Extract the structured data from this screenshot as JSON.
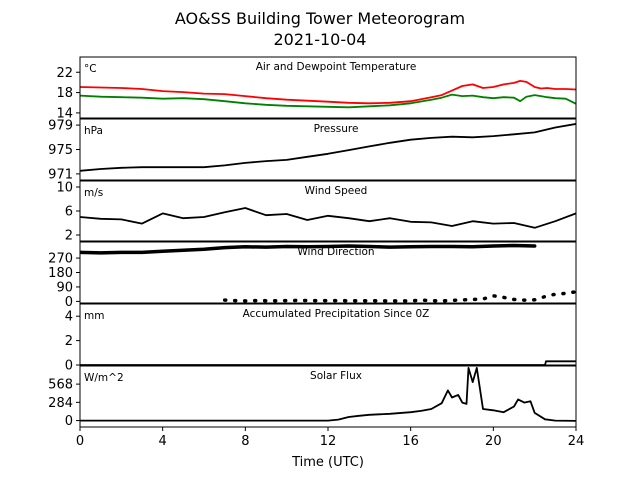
{
  "title_line1": "AO&SS Building Tower Meteorogram",
  "title_line2": "2021-10-04",
  "xlabel": "Time (UTC)",
  "xticks": [
    0,
    4,
    8,
    12,
    16,
    20,
    24
  ],
  "chart_data": {
    "type": "line",
    "title": "AO&SS Building Tower Meteorogram 2021-10-04",
    "xlabel": "Time (UTC)",
    "xlim": [
      0,
      24
    ],
    "panels": [
      {
        "id": "temp",
        "title": "Air and Dewpoint Temperature",
        "unit": "°C",
        "ylim": [
          13,
          25
        ],
        "yticks": [
          14,
          18,
          22
        ],
        "series": [
          {
            "color": "#ff0000",
            "x": [
              0,
              1,
              2,
              3,
              4,
              5,
              6,
              7,
              8,
              9,
              10,
              11,
              12,
              13,
              14,
              15,
              16,
              17,
              17.5,
              18,
              18.5,
              19,
              19.5,
              20,
              20.5,
              21,
              21.3,
              21.6,
              22,
              22.3,
              22.6,
              23,
              23.5,
              24
            ],
            "y": [
              19.1,
              19.0,
              18.9,
              18.7,
              18.3,
              18.1,
              17.8,
              17.7,
              17.3,
              16.9,
              16.6,
              16.4,
              16.2,
              16.0,
              15.9,
              16.0,
              16.3,
              17.1,
              17.5,
              18.4,
              19.3,
              19.6,
              18.9,
              19.1,
              19.6,
              19.9,
              20.3,
              20.1,
              19.1,
              18.8,
              18.9,
              18.7,
              18.7,
              18.6
            ]
          },
          {
            "color": "#008000",
            "x": [
              0,
              1,
              2,
              3,
              4,
              5,
              6,
              7,
              8,
              9,
              10,
              11,
              12,
              13,
              14,
              15,
              16,
              17,
              17.5,
              18,
              18.5,
              19,
              19.5,
              20,
              20.5,
              21,
              21.3,
              21.6,
              22,
              22.3,
              22.6,
              23,
              23.5,
              24
            ],
            "y": [
              17.4,
              17.2,
              17.1,
              17.0,
              16.8,
              16.9,
              16.7,
              16.3,
              15.9,
              15.6,
              15.4,
              15.3,
              15.2,
              15.1,
              15.3,
              15.5,
              15.9,
              16.6,
              17.0,
              17.6,
              17.3,
              17.4,
              17.1,
              16.9,
              17.1,
              17.0,
              16.3,
              17.2,
              17.5,
              17.3,
              17.1,
              16.9,
              16.8,
              15.8
            ]
          }
        ]
      },
      {
        "id": "pressure",
        "title": "Pressure",
        "unit": "hPa",
        "ylim": [
          970,
          980
        ],
        "yticks": [
          971,
          975,
          979
        ],
        "series": [
          {
            "color": "#000000",
            "x": [
              0,
              1,
              2,
              3,
              4,
              5,
              6,
              7,
              8,
              9,
              10,
              11,
              12,
              13,
              14,
              15,
              16,
              17,
              18,
              19,
              20,
              21,
              22,
              23,
              24
            ],
            "y": [
              971.5,
              971.8,
              972.0,
              972.1,
              972.1,
              972.1,
              972.1,
              972.4,
              972.8,
              973.1,
              973.3,
              973.8,
              974.3,
              974.9,
              975.5,
              976.1,
              976.6,
              976.9,
              977.1,
              977.0,
              977.2,
              977.5,
              977.8,
              978.6,
              979.2
            ]
          }
        ]
      },
      {
        "id": "wind_speed",
        "title": "Wind Speed",
        "unit": "m/s",
        "ylim": [
          1,
          11
        ],
        "yticks": [
          2,
          6,
          10
        ],
        "series": [
          {
            "color": "#000000",
            "x": [
              0,
              1,
              2,
              3,
              4,
              5,
              6,
              7,
              8,
              9,
              10,
              11,
              12,
              13,
              14,
              15,
              16,
              17,
              18,
              19,
              20,
              21,
              22,
              23,
              24
            ],
            "y": [
              5.0,
              4.7,
              4.6,
              3.9,
              5.6,
              4.8,
              5.0,
              5.8,
              6.5,
              5.3,
              5.5,
              4.5,
              5.2,
              4.8,
              4.3,
              4.8,
              4.2,
              4.1,
              3.5,
              4.3,
              3.9,
              4.0,
              3.2,
              4.3,
              5.6
            ]
          }
        ]
      },
      {
        "id": "wind_dir",
        "title": "Wind Direction",
        "unit": "",
        "ylim": [
          -10,
          370
        ],
        "yticks": [
          0,
          90,
          180,
          270
        ],
        "series": [
          {
            "color": "#000000",
            "x": [
              0,
              1,
              2,
              3,
              4,
              5,
              6,
              7,
              8,
              9,
              10,
              11,
              12,
              13,
              14,
              15,
              16,
              17,
              18,
              19,
              20,
              21,
              22
            ],
            "y": [
              305,
              302,
              305,
              305,
              312,
              318,
              325,
              335,
              340,
              338,
              342,
              340,
              342,
              345,
              342,
              338,
              340,
              342,
              342,
              340,
              345,
              348,
              345
            ]
          },
          {
            "color": "#000000",
            "x": [
              7,
              7.5,
              8,
              8.5,
              9.5,
              10.5,
              11.5,
              16,
              16.5,
              17,
              17.5,
              18,
              19.5,
              20,
              20.5,
              21,
              21.5,
              22,
              22.5,
              23,
              23.5,
              24
            ],
            "y": [
              8,
              5,
              3,
              5,
              4,
              6,
              5,
              3,
              8,
              5,
              3,
              6,
              15,
              35,
              25,
              12,
              8,
              10,
              30,
              45,
              50,
              60
            ]
          }
        ]
      },
      {
        "id": "precip",
        "title": "Accumulated Precipitation Since 0Z",
        "unit": "mm",
        "ylim": [
          0,
          5
        ],
        "yticks": [
          0,
          2,
          4
        ],
        "series": [
          {
            "color": "#000000",
            "x": [
              0,
              22.5,
              22.55,
              24
            ],
            "y": [
              0,
              0,
              0.3,
              0.3
            ]
          }
        ]
      },
      {
        "id": "solar",
        "title": "Solar Flux",
        "unit": "W/m^2",
        "ylim": [
          -100,
          850
        ],
        "yticks": [
          0,
          284,
          568
        ],
        "series": [
          {
            "color": "#000000",
            "x": [
              0,
              12,
              12.5,
              13,
              13.5,
              14,
              15,
              16,
              16.5,
              17,
              17.5,
              17.8,
              18,
              18.3,
              18.5,
              18.7,
              18.8,
              19,
              19.2,
              19.5,
              20,
              20.5,
              21,
              21.2,
              21.5,
              21.8,
              22,
              22.5,
              23,
              24
            ],
            "y": [
              0,
              0,
              15,
              55,
              75,
              90,
              105,
              130,
              150,
              180,
              270,
              470,
              360,
              400,
              280,
              260,
              820,
              600,
              820,
              180,
              160,
              130,
              220,
              330,
              280,
              300,
              120,
              20,
              0,
              -5
            ]
          }
        ]
      }
    ]
  }
}
